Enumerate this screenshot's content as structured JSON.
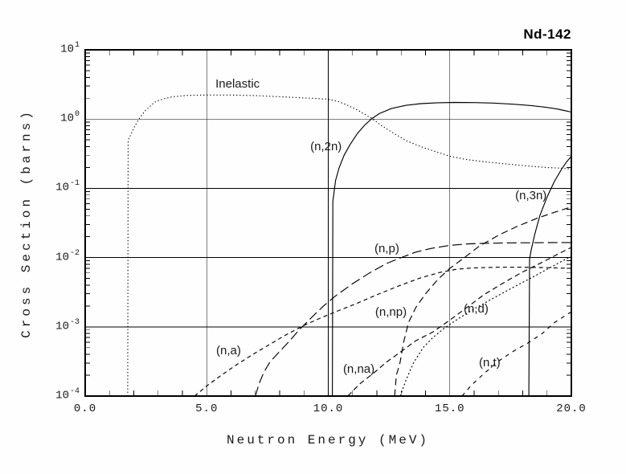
{
  "chart_data": {
    "type": "line",
    "title": "Nd-142",
    "xlabel": "Neutron Energy (MeV)",
    "ylabel": "Cross Section (barns)",
    "x_scale": "linear",
    "y_scale": "log",
    "xlim": [
      0,
      20
    ],
    "ylim": [
      0.0001,
      10
    ],
    "grid": "major-on",
    "legend": "inline-labels",
    "line_color": "#000000",
    "background_color": "#fefefe",
    "x_ticks": [
      {
        "value": 0,
        "label": "0.0"
      },
      {
        "value": 5,
        "label": "5.0"
      },
      {
        "value": 10,
        "label": "10.0"
      },
      {
        "value": 15,
        "label": "15.0"
      },
      {
        "value": 20,
        "label": "20.0"
      }
    ],
    "y_tick_base": "10",
    "y_ticks": [
      {
        "value": 10,
        "exp": "1"
      },
      {
        "value": 1,
        "exp": "0"
      },
      {
        "value": 0.1,
        "exp": "-1"
      },
      {
        "value": 0.01,
        "exp": "-2"
      },
      {
        "value": 0.001,
        "exp": "-3"
      },
      {
        "value": 0.0001,
        "exp": "-4"
      }
    ],
    "x_minor_step": 1,
    "series": [
      {
        "id": "inelastic",
        "label": "Inelastic",
        "style": "dotted",
        "dash": "1.3 2.8",
        "label_x": 5.36,
        "label_y": 3.9,
        "points": [
          [
            1.75,
            0.0001
          ],
          [
            1.77,
            0.5
          ],
          [
            1.9,
            0.62
          ],
          [
            2.05,
            0.8
          ],
          [
            2.21,
            1.0
          ],
          [
            2.45,
            1.3
          ],
          [
            2.85,
            1.75
          ],
          [
            3.2,
            1.95
          ],
          [
            3.6,
            2.1
          ],
          [
            4.2,
            2.2
          ],
          [
            5.0,
            2.22
          ],
          [
            6.0,
            2.22
          ],
          [
            7.0,
            2.18
          ],
          [
            7.8,
            2.12
          ],
          [
            8.5,
            2.06
          ],
          [
            9.0,
            2.02
          ],
          [
            9.5,
            1.98
          ],
          [
            10.0,
            1.93
          ],
          [
            10.4,
            1.8
          ],
          [
            10.8,
            1.58
          ],
          [
            11.2,
            1.35
          ],
          [
            11.8,
            1.02
          ],
          [
            12.2,
            0.8
          ],
          [
            12.7,
            0.62
          ],
          [
            13.2,
            0.49
          ],
          [
            13.8,
            0.4
          ],
          [
            14.4,
            0.34
          ],
          [
            15.0,
            0.29
          ],
          [
            15.7,
            0.26
          ],
          [
            16.5,
            0.24
          ],
          [
            17.3,
            0.225
          ],
          [
            18.2,
            0.21
          ],
          [
            19.0,
            0.2
          ],
          [
            19.6,
            0.195
          ],
          [
            20.0,
            0.19
          ]
        ]
      },
      {
        "id": "n2n",
        "label": "(n,2n)",
        "style": "solid",
        "dash": "",
        "label_x": 9.26,
        "label_y": 0.49,
        "points": [
          [
            10.17,
            0.0001
          ],
          [
            10.19,
            0.065
          ],
          [
            10.3,
            0.13
          ],
          [
            10.45,
            0.2
          ],
          [
            10.65,
            0.3
          ],
          [
            10.9,
            0.43
          ],
          [
            11.2,
            0.62
          ],
          [
            11.5,
            0.82
          ],
          [
            11.8,
            1.02
          ],
          [
            12.1,
            1.2
          ],
          [
            12.6,
            1.42
          ],
          [
            13.2,
            1.58
          ],
          [
            13.8,
            1.67
          ],
          [
            14.5,
            1.72
          ],
          [
            15.2,
            1.74
          ],
          [
            16.0,
            1.73
          ],
          [
            16.8,
            1.7
          ],
          [
            17.6,
            1.64
          ],
          [
            18.3,
            1.57
          ],
          [
            18.9,
            1.49
          ],
          [
            19.4,
            1.4
          ],
          [
            19.7,
            1.33
          ],
          [
            20.0,
            1.26
          ]
        ]
      },
      {
        "id": "n3n",
        "label": "(n,3n)",
        "style": "solid",
        "dash": "",
        "label_x": 17.69,
        "label_y": 0.095,
        "points": [
          [
            18.25,
            0.0001
          ],
          [
            18.28,
            0.0095
          ],
          [
            18.35,
            0.013
          ],
          [
            18.5,
            0.022
          ],
          [
            18.7,
            0.04
          ],
          [
            19.0,
            0.075
          ],
          [
            19.3,
            0.125
          ],
          [
            19.6,
            0.19
          ],
          [
            19.8,
            0.24
          ],
          [
            20.0,
            0.29
          ]
        ]
      },
      {
        "id": "np",
        "label": "(n,p)",
        "style": "long-dash",
        "dash": "12 5",
        "label_x": 11.9,
        "label_y": 0.0164,
        "points": [
          [
            7.0,
            0.0001
          ],
          [
            7.15,
            0.00015
          ],
          [
            7.35,
            0.00022
          ],
          [
            7.6,
            0.00031
          ],
          [
            8.0,
            0.00044
          ],
          [
            8.4,
            0.00062
          ],
          [
            8.8,
            0.0009
          ],
          [
            9.3,
            0.00135
          ],
          [
            9.8,
            0.002
          ],
          [
            10.3,
            0.0028
          ],
          [
            11.0,
            0.0042
          ],
          [
            11.7,
            0.006
          ],
          [
            12.4,
            0.0082
          ],
          [
            13.0,
            0.01
          ],
          [
            13.6,
            0.012
          ],
          [
            14.2,
            0.0135
          ],
          [
            15.0,
            0.015
          ],
          [
            15.8,
            0.0158
          ],
          [
            16.5,
            0.0161
          ],
          [
            17.5,
            0.0163
          ],
          [
            18.5,
            0.0164
          ],
          [
            19.5,
            0.0165
          ],
          [
            20.0,
            0.0165
          ]
        ]
      },
      {
        "id": "nnp",
        "label": "(n,np)",
        "style": "long-dash",
        "dash": "8.5 5",
        "label_x": 11.93,
        "label_y": 0.002,
        "points": [
          [
            12.73,
            0.0001
          ],
          [
            12.8,
            0.0002
          ],
          [
            12.95,
            0.0003
          ],
          [
            13.1,
            0.0006
          ],
          [
            13.3,
            0.00115
          ],
          [
            13.6,
            0.0019
          ],
          [
            14.0,
            0.003
          ],
          [
            14.5,
            0.0048
          ],
          [
            15.0,
            0.007
          ],
          [
            15.6,
            0.01
          ],
          [
            16.2,
            0.0145
          ],
          [
            17.0,
            0.021
          ],
          [
            17.8,
            0.0285
          ],
          [
            18.6,
            0.037
          ],
          [
            19.3,
            0.045
          ],
          [
            20.0,
            0.054
          ]
        ]
      },
      {
        "id": "na",
        "label": "(n,a)",
        "style": "short-dash",
        "dash": "5 4",
        "label_x": 5.39,
        "label_y": 0.00055,
        "points": [
          [
            4.5,
            0.0001
          ],
          [
            5.0,
            0.00014
          ],
          [
            5.6,
            0.0002
          ],
          [
            6.2,
            0.00028
          ],
          [
            6.9,
            0.0004
          ],
          [
            7.6,
            0.00056
          ],
          [
            8.3,
            0.00078
          ],
          [
            9.0,
            0.00105
          ],
          [
            9.7,
            0.00135
          ],
          [
            10.4,
            0.0017
          ],
          [
            11.2,
            0.0022
          ],
          [
            12.0,
            0.0029
          ],
          [
            12.9,
            0.0039
          ],
          [
            13.8,
            0.0051
          ],
          [
            14.6,
            0.0061
          ],
          [
            15.3,
            0.0068
          ],
          [
            16.0,
            0.0071
          ],
          [
            17.0,
            0.00725
          ],
          [
            18.0,
            0.00725
          ],
          [
            19.0,
            0.00715
          ],
          [
            20.0,
            0.007
          ]
        ]
      },
      {
        "id": "nna",
        "label": "(n,na)",
        "style": "short-dash",
        "dash": "6.5 4.2",
        "label_x": 10.61,
        "label_y": 0.0003,
        "points": [
          [
            10.8,
            0.0001
          ],
          [
            11.3,
            0.00015
          ],
          [
            11.9,
            0.00022
          ],
          [
            12.4,
            0.00031
          ],
          [
            13.0,
            0.00044
          ],
          [
            13.6,
            0.00063
          ],
          [
            14.3,
            0.00084
          ],
          [
            15.0,
            0.00125
          ],
          [
            15.7,
            0.0019
          ],
          [
            16.4,
            0.0029
          ],
          [
            17.2,
            0.0043
          ],
          [
            18.0,
            0.0062
          ],
          [
            18.9,
            0.0089
          ],
          [
            19.5,
            0.0115
          ],
          [
            20.0,
            0.014
          ]
        ]
      },
      {
        "id": "nd",
        "label": "(n,d)",
        "style": "dotted",
        "dash": "2 2.8",
        "label_x": 15.57,
        "label_y": 0.0022,
        "points": [
          [
            12.96,
            0.0001
          ],
          [
            13.2,
            0.00017
          ],
          [
            13.5,
            0.0003
          ],
          [
            13.9,
            0.0005
          ],
          [
            14.3,
            0.0007
          ],
          [
            14.8,
            0.00097
          ],
          [
            15.4,
            0.00135
          ],
          [
            16.1,
            0.0019
          ],
          [
            16.8,
            0.0026
          ],
          [
            17.6,
            0.0037
          ],
          [
            18.4,
            0.0052
          ],
          [
            19.2,
            0.0074
          ],
          [
            19.7,
            0.0092
          ],
          [
            20.0,
            0.0105
          ]
        ]
      },
      {
        "id": "nt",
        "label": "(n,t)",
        "style": "short-dash",
        "dash": "5 5.5",
        "label_x": 16.2,
        "label_y": 0.00037,
        "points": [
          [
            15.5,
            0.0001
          ],
          [
            15.9,
            0.000145
          ],
          [
            16.4,
            0.00021
          ],
          [
            17.0,
            0.00032
          ],
          [
            17.6,
            0.00044
          ],
          [
            18.2,
            0.00058
          ],
          [
            18.8,
            0.0008
          ],
          [
            19.3,
            0.00115
          ],
          [
            20.0,
            0.00165
          ]
        ]
      }
    ]
  }
}
